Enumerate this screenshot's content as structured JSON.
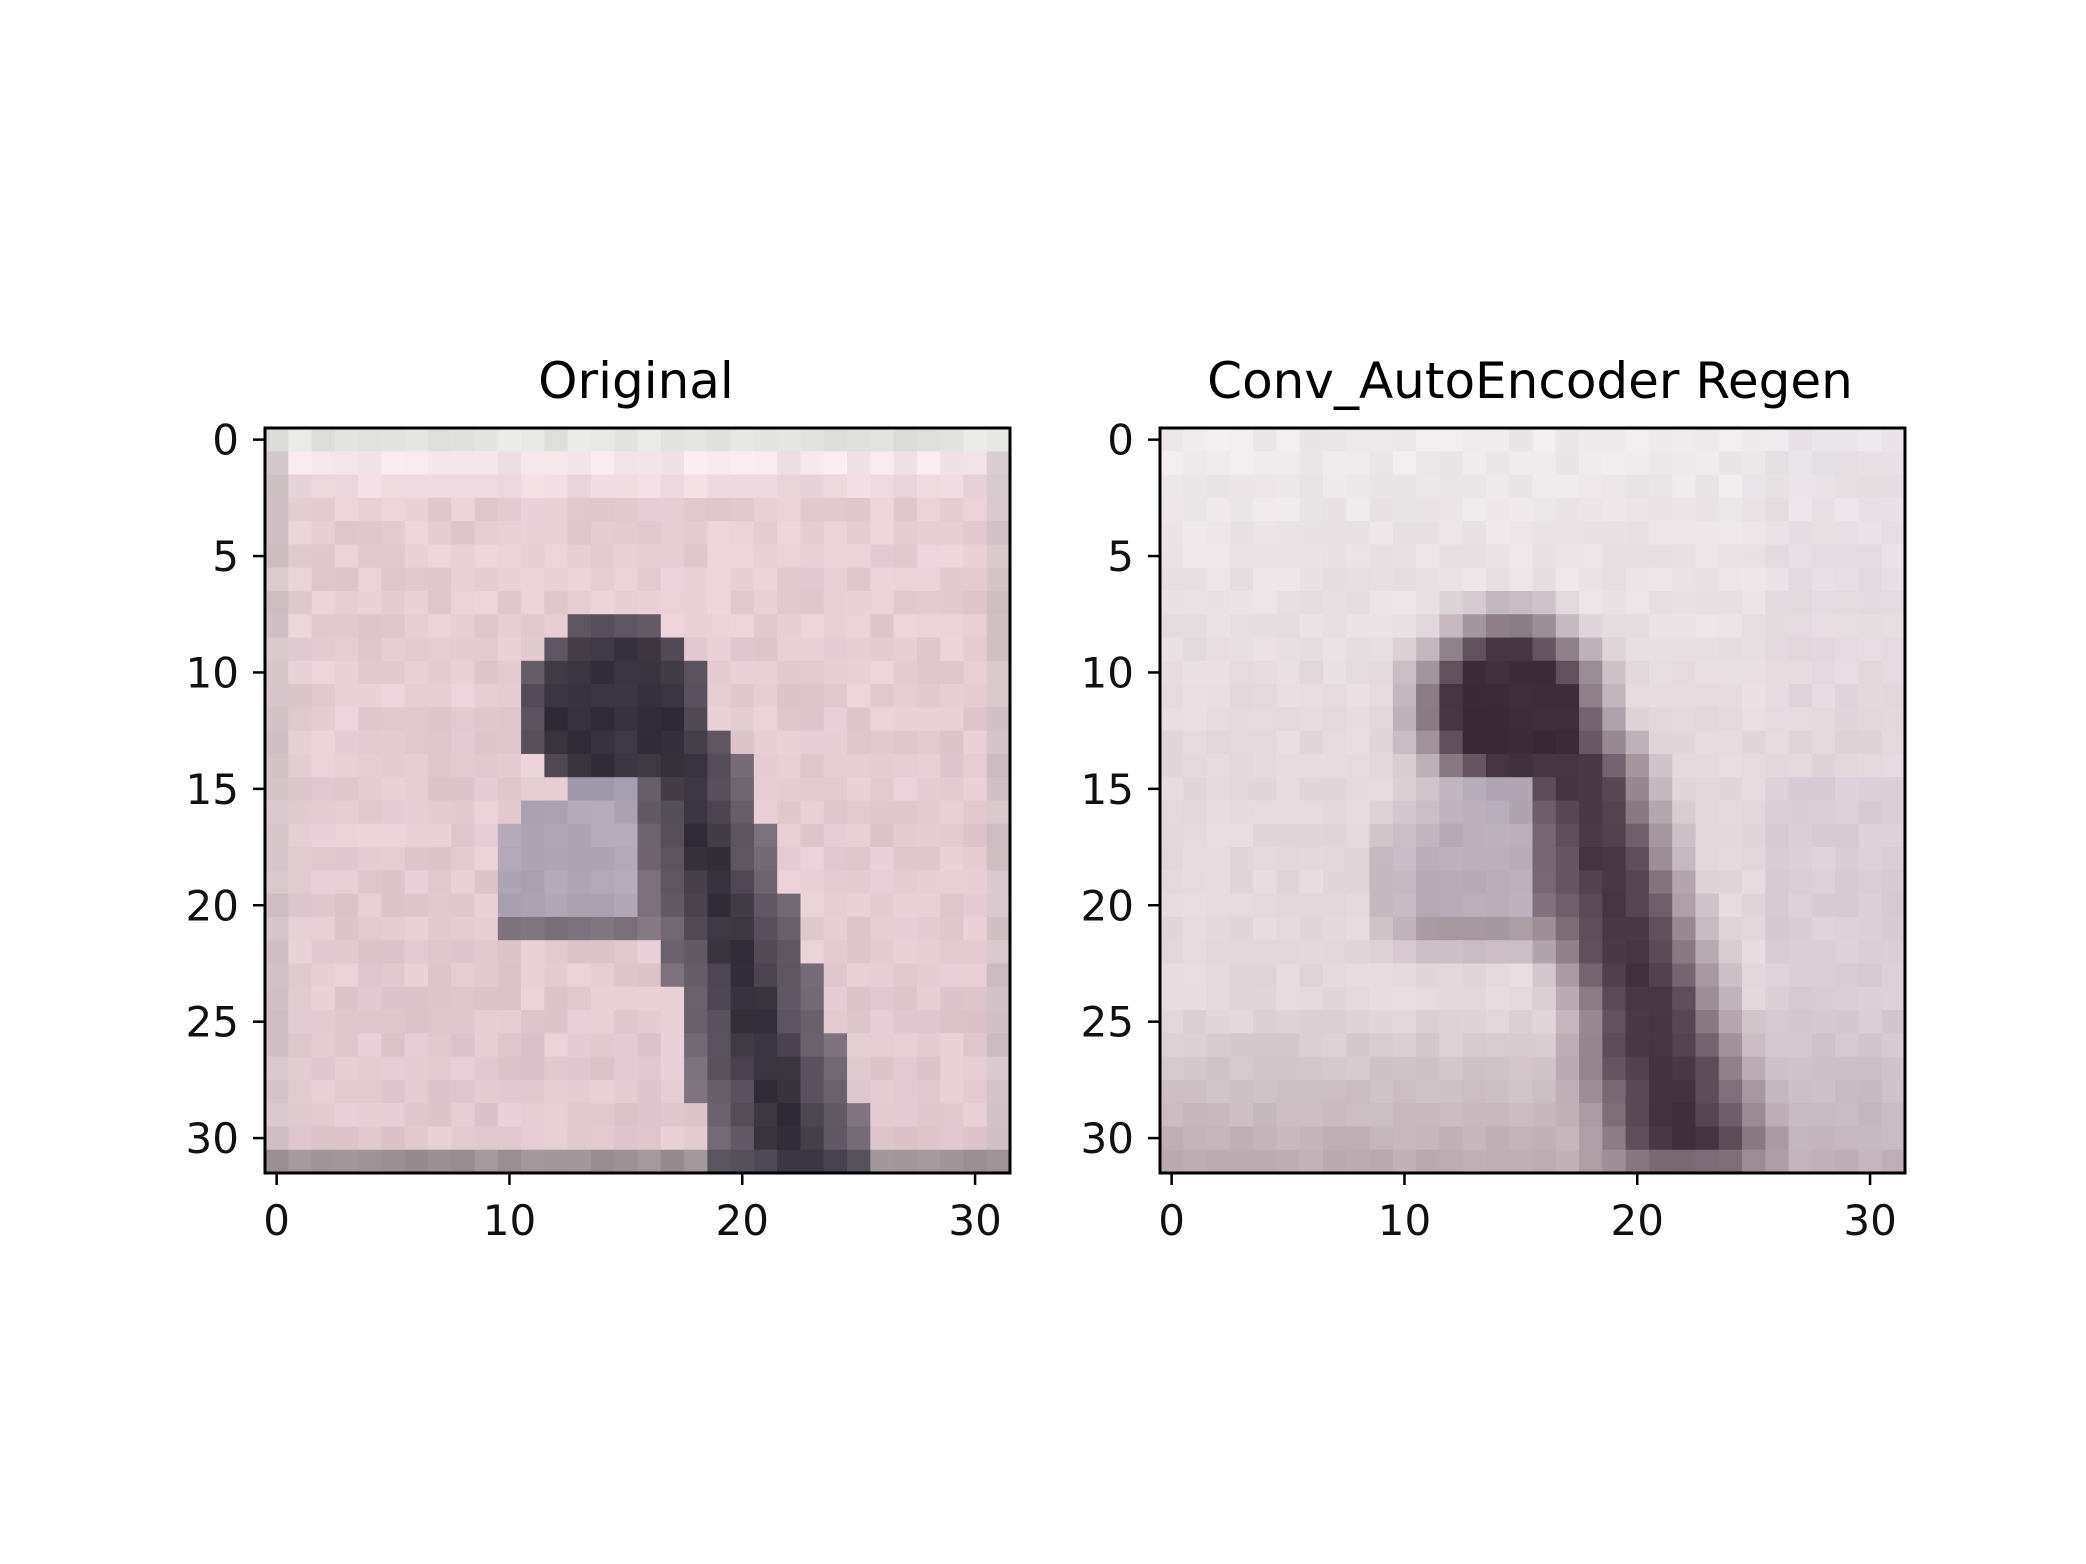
{
  "chart_data": [
    {
      "type": "image",
      "title": "Original",
      "xlabel": "",
      "ylabel": "",
      "xlim": [
        -0.5,
        31.5
      ],
      "ylim": [
        31.5,
        -0.5
      ],
      "xticks": [
        0,
        10,
        20,
        30
      ],
      "yticks": [
        0,
        5,
        10,
        15,
        20,
        25,
        30
      ],
      "image_size": [
        32,
        32
      ],
      "palette": {
        "background": "#e7cdd4",
        "top_band": "#f4e6ea",
        "frame_top": "#e3e3e1",
        "frame_side": "#c4bdbf",
        "bottom_band": "#8b8486",
        "bird_dark": "#35303b",
        "bird_mid": "#5b5868",
        "bird_light": "#a6a6bb"
      }
    },
    {
      "type": "image",
      "title": "Conv_AutoEncoder Regen",
      "xlabel": "",
      "ylabel": "",
      "xlim": [
        -0.5,
        31.5
      ],
      "ylim": [
        31.5,
        -0.5
      ],
      "xticks": [
        0,
        10,
        20,
        30
      ],
      "yticks": [
        0,
        5,
        10,
        15,
        20,
        25,
        30
      ],
      "image_size": [
        32,
        32
      ],
      "palette": {
        "background": "#e4d8dc",
        "top_band": "#eeeaec",
        "bottom_band": "#b2a3a8",
        "bird_dark": "#3c2b38",
        "bird_mid": "#6b5766",
        "bird_light": "#b8b0c2"
      }
    }
  ]
}
